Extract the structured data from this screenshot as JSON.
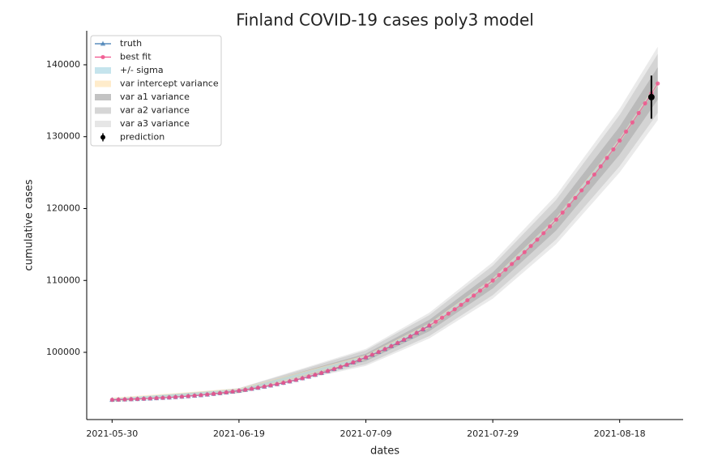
{
  "chart_data": {
    "type": "line",
    "title": "Finland COVID-19 cases poly3 model",
    "xlabel": "dates",
    "ylabel": "cumulative cases",
    "x": [
      "2021-05-30",
      "2021-05-31",
      "2021-06-01",
      "2021-06-02",
      "2021-06-03",
      "2021-06-04",
      "2021-06-05",
      "2021-06-06",
      "2021-06-07",
      "2021-06-08",
      "2021-06-09",
      "2021-06-10",
      "2021-06-11",
      "2021-06-12",
      "2021-06-13",
      "2021-06-14",
      "2021-06-15",
      "2021-06-16",
      "2021-06-17",
      "2021-06-18",
      "2021-06-19",
      "2021-06-20",
      "2021-06-21",
      "2021-06-22",
      "2021-06-23",
      "2021-06-24",
      "2021-06-25",
      "2021-06-26",
      "2021-06-27",
      "2021-06-28",
      "2021-06-29",
      "2021-06-30",
      "2021-07-01",
      "2021-07-02",
      "2021-07-03",
      "2021-07-04",
      "2021-07-05",
      "2021-07-06",
      "2021-07-07",
      "2021-07-08",
      "2021-07-09",
      "2021-07-10",
      "2021-07-11",
      "2021-07-12",
      "2021-07-13",
      "2021-07-14",
      "2021-07-15",
      "2021-07-16",
      "2021-07-17",
      "2021-07-18",
      "2021-07-19",
      "2021-07-20",
      "2021-07-21",
      "2021-07-22",
      "2021-07-23",
      "2021-07-24",
      "2021-07-25",
      "2021-07-26",
      "2021-07-27",
      "2021-07-28",
      "2021-07-29",
      "2021-07-30",
      "2021-07-31",
      "2021-08-01",
      "2021-08-02",
      "2021-08-03",
      "2021-08-04",
      "2021-08-05",
      "2021-08-06",
      "2021-08-07",
      "2021-08-08",
      "2021-08-09",
      "2021-08-10",
      "2021-08-11",
      "2021-08-12",
      "2021-08-13",
      "2021-08-14",
      "2021-08-15",
      "2021-08-16",
      "2021-08-17",
      "2021-08-18",
      "2021-08-19",
      "2021-08-20",
      "2021-08-21",
      "2021-08-22",
      "2021-08-23",
      "2021-08-24"
    ],
    "series": [
      {
        "name": "truth",
        "color": "#3a78b0",
        "marker": "triangle",
        "values": [
          93400,
          93424,
          93451,
          93480,
          93511,
          93546,
          93584,
          93626,
          93672,
          93722,
          93777,
          93837,
          93903,
          93974,
          94051,
          94135,
          94226,
          94323,
          94428,
          94541,
          94662,
          94791,
          94930,
          95077,
          95234,
          95400,
          95577,
          95764,
          95962,
          96171,
          96391,
          96623,
          96868,
          97125,
          97394,
          97677,
          97973,
          98283,
          98608,
          98946,
          99300,
          99669,
          100053,
          100453,
          100869,
          101302,
          101752,
          102218,
          102703,
          103205,
          103725,
          null,
          null,
          null,
          null,
          null,
          null,
          null,
          null,
          null,
          null,
          null,
          null,
          null,
          null,
          null,
          null,
          null,
          null,
          null,
          null,
          null,
          null,
          null,
          null,
          null,
          null,
          null,
          null,
          null,
          null,
          null,
          null,
          null,
          null,
          null,
          null
        ]
      },
      {
        "name": "best fit",
        "color": "#f0508a",
        "marker": "circle",
        "values": [
          93400,
          93424,
          93451,
          93480,
          93511,
          93546,
          93584,
          93626,
          93672,
          93722,
          93777,
          93837,
          93903,
          93974,
          94051,
          94135,
          94226,
          94323,
          94428,
          94541,
          94662,
          94791,
          94930,
          95077,
          95234,
          95400,
          95577,
          95764,
          95962,
          96171,
          96391,
          96623,
          96868,
          97125,
          97394,
          97677,
          97973,
          98283,
          98608,
          98946,
          99300,
          99669,
          100053,
          100453,
          100869,
          101302,
          101752,
          102218,
          102703,
          103205,
          103725,
          104264,
          104821,
          105398,
          105995,
          106611,
          107247,
          107904,
          108582,
          109282,
          110002,
          110744,
          111509,
          112296,
          113107,
          113940,
          114798,
          115678,
          116583,
          117512,
          118467,
          119447,
          120452,
          121483,
          122541,
          123625,
          124736,
          125874,
          127040,
          128234,
          129456,
          130707,
          131986,
          133295,
          134634,
          136002,
          137401
        ]
      }
    ],
    "band_x": [
      "2021-05-30",
      "2021-06-19",
      "2021-07-09",
      "2021-07-19",
      "2021-07-29",
      "2021-08-08",
      "2021-08-18",
      "2021-08-24"
    ],
    "bands": [
      {
        "name": "+/- sigma",
        "color": "#add8e6",
        "lower": [
          93200,
          94462,
          99100,
          103525,
          109802,
          118267,
          129256,
          137201
        ],
        "upper": [
          93600,
          94862,
          99500,
          103925,
          110202,
          118667,
          129656,
          137601
        ]
      },
      {
        "name": "var intercept variance",
        "color": "#ffe4b5",
        "lower": [
          93100,
          94362,
          99000,
          103425,
          109702,
          118167,
          129156,
          137101
        ],
        "upper": [
          93700,
          94962,
          99600,
          104025,
          110302,
          118767,
          129756,
          137701
        ]
      },
      {
        "name": "var a1 variance",
        "color": "#a9a9a9",
        "lower": [
          93350,
          94492,
          98775,
          102930,
          108882,
          116957,
          127506,
          135151
        ],
        "upper": [
          93450,
          94832,
          99825,
          104520,
          111122,
          119977,
          131406,
          139651
        ]
      },
      {
        "name": "var a2 variance",
        "color": "#c4c4c4",
        "lower": [
          93300,
          94342,
          98335,
          102275,
          107952,
          115717,
          125896,
          133301
        ],
        "upper": [
          93500,
          94982,
          100265,
          105175,
          112052,
          121217,
          133016,
          141501
        ]
      },
      {
        "name": "var a3 variance",
        "color": "#dcdcdc",
        "lower": [
          93300,
          94292,
          98120,
          101935,
          107472,
          115057,
          125026,
          132301
        ],
        "upper": [
          93500,
          95032,
          100480,
          105515,
          112532,
          121877,
          133886,
          142501
        ]
      }
    ],
    "prediction": {
      "name": "prediction",
      "x": "2021-08-23",
      "value": 135500,
      "error": 3000,
      "color": "#000000"
    },
    "xlim": [
      "2021-05-26",
      "2021-08-28"
    ],
    "ylim": [
      90650,
      144730
    ],
    "xticks": [
      "2021-05-30",
      "2021-06-19",
      "2021-07-09",
      "2021-07-29",
      "2021-08-18"
    ],
    "yticks": [
      100000,
      110000,
      120000,
      130000,
      140000
    ],
    "legend": "upper left"
  }
}
